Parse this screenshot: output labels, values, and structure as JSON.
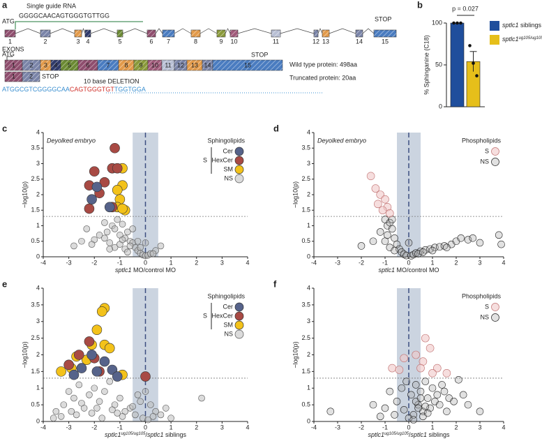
{
  "panel_a": {
    "panel": "a",
    "sgrna_label": "Single guide RNA",
    "sgrna_seq": "GGGGCAACAGTGGGTGTTGG",
    "start": "ATG",
    "stop": "STOP",
    "exons_label": "EXONS",
    "exons": [
      {
        "label": "1",
        "color": "#8f4e6e"
      },
      {
        "label": "2",
        "color": "#7a84a8"
      },
      {
        "label": "3",
        "color": "#e29a4a"
      },
      {
        "label": "4",
        "color": "#2f3a6b"
      },
      {
        "label": "5",
        "color": "#6b8a33"
      },
      {
        "label": "6",
        "color": "#8f4e6e"
      },
      {
        "label": "7",
        "color": "#4a7cc0"
      },
      {
        "label": "8",
        "color": "#e29a4a"
      },
      {
        "label": "9",
        "color": "#8a9a3a"
      },
      {
        "label": "10",
        "color": "#a05a7a"
      },
      {
        "label": "11",
        "color": "#b8bfd4"
      },
      {
        "label": "12",
        "color": "#7a84a8"
      },
      {
        "label": "13",
        "color": "#e29a4a"
      },
      {
        "label": "14",
        "color": "#7a84a8"
      },
      {
        "label": "15",
        "color": "#4a7cc0"
      }
    ],
    "truncated_blocks": [
      "1",
      "2"
    ],
    "wt_label": "Wild type protein: 498aa",
    "truncated_label": "Truncated protein: 20aa",
    "deletion_label": "10 base DELETION",
    "sequence": [
      {
        "text": "ATGGCGTCGGGGCAA",
        "color": "#3a8fd0"
      },
      {
        "text": "CAGTGGGTGT",
        "color": "#d0302a"
      },
      {
        "text": "TGGTGGA",
        "color": "#3a8fd0"
      }
    ]
  },
  "chart_data": [
    {
      "type": "bar",
      "panel": "b",
      "ylabel": "% Sphinganine (C18)",
      "ylim": [
        0,
        100
      ],
      "yticks": [
        0,
        50,
        100
      ],
      "annotation": "p = 0.027",
      "series": [
        {
          "label": [
            {
              "text": "sptlc1",
              "italic": true
            },
            {
              "text": " siblings"
            }
          ],
          "color": "#1f4e9c",
          "values": [
            100
          ],
          "error": [
            0
          ],
          "points": [
            100,
            100,
            100
          ]
        },
        {
          "label": [
            {
              "text": "sptlc1",
              "italic": true
            },
            {
              "text": "ug105/ug105",
              "sup": true,
              "italic": true
            }
          ],
          "color": "#e6bf1a",
          "values": [
            54
          ],
          "error": [
            12
          ],
          "points": [
            73,
            52,
            37
          ]
        }
      ]
    },
    {
      "type": "volcano",
      "panel": "c",
      "annotation": "Deyolked embryo",
      "ylabel": "−log10(p)",
      "xlabel": [
        {
          "text": "sptlc1",
          "italic": true
        },
        {
          "text": " MO/control MO"
        }
      ],
      "xlim": [
        -4,
        4
      ],
      "ylim": [
        0,
        4
      ],
      "xticks": [
        -4,
        -3,
        -2,
        -1,
        0,
        1,
        2,
        3,
        4
      ],
      "yticks": [
        0,
        0.5,
        1,
        1.5,
        2,
        2.5,
        3,
        3.5,
        4
      ],
      "threshold": 1.3,
      "band": [
        -0.5,
        0.5
      ],
      "legend_title": "Sphingolipids",
      "group_label": "S",
      "series": [
        {
          "name": "Cer",
          "color": "#56638a",
          "stroke": "#333",
          "size": 7,
          "x": [
            -2.1,
            -1.9,
            -1.4
          ],
          "values": [
            1.85,
            2.25,
            1.6
          ]
        },
        {
          "name": "HexCer",
          "color": "#a84a44",
          "stroke": "#333",
          "size": 7,
          "x": [
            -1.2,
            -1.3,
            -1.1,
            -2.0,
            -1.6,
            -2.2,
            -1.8,
            -1.3,
            -2.2
          ],
          "values": [
            3.5,
            2.85,
            2.85,
            2.75,
            2.4,
            2.3,
            2.05,
            1.6,
            1.55
          ]
        },
        {
          "name": "SM",
          "color": "#f3c21a",
          "stroke": "#333",
          "size": 7,
          "x": [
            -0.9,
            -0.9,
            -1.1,
            -1.0,
            -0.8,
            -1.1,
            -0.9
          ],
          "values": [
            2.85,
            2.3,
            2.15,
            1.85,
            1.5,
            1.6,
            1.55
          ]
        },
        {
          "name": "NS",
          "color": "rgba(190,190,190,0.55)",
          "stroke": "#555",
          "size": 4.5,
          "x": [
            -2.8,
            -2.5,
            -2.3,
            -2.0,
            -1.8,
            -1.6,
            -1.5,
            -1.4,
            -1.3,
            -1.2,
            -1.1,
            -1.0,
            -0.9,
            -0.8,
            -0.7,
            -0.6,
            -0.5,
            -0.4,
            -0.3,
            -0.2,
            -0.1,
            0.0,
            0.1,
            0.2,
            0.4,
            0.6,
            -1.2,
            -1.0,
            -0.8,
            -0.6,
            -0.9,
            -0.7,
            -1.6,
            -2.1,
            -0.5,
            -0.3,
            0.3,
            -1.4,
            -0.2,
            0.0
          ],
          "values": [
            0.35,
            0.5,
            0.9,
            0.55,
            0.7,
            1.1,
            0.8,
            0.45,
            1.0,
            0.9,
            1.2,
            0.7,
            1.05,
            0.6,
            0.8,
            0.5,
            0.45,
            0.3,
            0.2,
            0.12,
            0.06,
            0.03,
            0.05,
            0.1,
            0.2,
            0.35,
            0.3,
            0.4,
            0.25,
            0.35,
            0.55,
            0.15,
            0.6,
            0.4,
            0.9,
            0.5,
            0.1,
            0.25,
            0.3,
            0.45
          ]
        }
      ]
    },
    {
      "type": "volcano",
      "panel": "d",
      "annotation": "Deyolked embryo",
      "ylabel": "−log10(p)",
      "xlabel": [
        {
          "text": "sptlc1",
          "italic": true
        },
        {
          "text": " MO/control MO"
        }
      ],
      "xlim": [
        -4,
        4
      ],
      "ylim": [
        0,
        4
      ],
      "xticks": [
        -4,
        -3,
        -2,
        -1,
        0,
        1,
        2,
        3,
        4
      ],
      "yticks": [
        0,
        0.5,
        1,
        1.5,
        2,
        2.5,
        3,
        3.5,
        4
      ],
      "threshold": 1.3,
      "band": [
        -0.5,
        0.5
      ],
      "legend_title": "Phospholipids",
      "series": [
        {
          "name": "S",
          "color": "rgba(240,200,200,0.6)",
          "stroke": "#c07070",
          "size": 5.5,
          "x": [
            -1.6,
            -1.4,
            -1.2,
            -1.0,
            -1.3,
            -0.9,
            -1.1,
            -0.8
          ],
          "values": [
            2.6,
            2.2,
            2.0,
            1.85,
            1.7,
            1.6,
            1.5,
            1.4
          ]
        },
        {
          "name": "NS",
          "color": "rgba(170,170,170,0.35)",
          "stroke": "#222",
          "size": 5,
          "x": [
            -2.0,
            -1.5,
            -1.2,
            -1.0,
            -0.9,
            -0.8,
            -0.7,
            -0.6,
            -0.5,
            -0.4,
            -0.3,
            -0.2,
            -0.1,
            0.1,
            0.2,
            0.3,
            0.5,
            0.7,
            0.9,
            1.1,
            1.3,
            1.5,
            1.8,
            2.0,
            2.2,
            2.5,
            2.7,
            3.0,
            3.8,
            3.9,
            -1.0,
            -0.8,
            -0.6,
            -0.9,
            -0.7,
            0.0,
            0.4,
            0.6,
            1.0,
            1.6
          ],
          "values": [
            0.35,
            0.5,
            0.8,
            1.2,
            1.0,
            1.1,
            0.9,
            0.6,
            0.4,
            0.25,
            0.15,
            0.08,
            0.04,
            0.03,
            0.07,
            0.12,
            0.18,
            0.22,
            0.25,
            0.3,
            0.32,
            0.35,
            0.4,
            0.5,
            0.6,
            0.55,
            0.6,
            0.45,
            0.7,
            0.4,
            0.5,
            0.3,
            0.2,
            0.7,
            1.2,
            0.45,
            0.1,
            0.15,
            0.2,
            0.3
          ]
        }
      ]
    },
    {
      "type": "volcano",
      "panel": "e",
      "ylabel": "−log10(p)",
      "xlabel": [
        {
          "text": "sptlc1",
          "italic": true
        },
        {
          "text": "ug105/ug105",
          "sup": true,
          "italic": true
        },
        {
          "text": "/"
        },
        {
          "text": "sptlc1",
          "italic": true
        },
        {
          "text": " siblings"
        }
      ],
      "xlim": [
        -4,
        4
      ],
      "ylim": [
        0,
        4
      ],
      "xticks": [
        -4,
        -3,
        -2,
        -1,
        0,
        1,
        2,
        3,
        4
      ],
      "yticks": [
        0,
        0.5,
        1,
        1.5,
        2,
        2.5,
        3,
        3.5,
        4
      ],
      "threshold": 1.3,
      "band": [
        -0.5,
        0.5
      ],
      "legend_title": "Sphingolipids",
      "group_label": "S",
      "series": [
        {
          "name": "Cer",
          "color": "#56638a",
          "stroke": "#333",
          "size": 7,
          "x": [
            -2.1,
            -1.6,
            -2.5,
            -1.9,
            -1.3,
            -2.8,
            -1.1
          ],
          "values": [
            2.0,
            1.8,
            1.6,
            1.5,
            1.55,
            1.4,
            1.35
          ]
        },
        {
          "name": "HexCer",
          "color": "#a84a44",
          "stroke": "#333",
          "size": 7,
          "x": [
            -2.6,
            -2.2,
            -3.0,
            -2.0,
            -1.8,
            0.0
          ],
          "values": [
            2.0,
            2.4,
            1.7,
            1.9,
            1.5,
            1.35
          ]
        },
        {
          "name": "SM",
          "color": "#f3c21a",
          "stroke": "#333",
          "size": 7,
          "x": [
            -1.6,
            -1.7,
            -1.9,
            -2.1,
            -1.6,
            -2.7,
            -2.3,
            -3.3,
            -2.9,
            -1.4,
            -0.9
          ],
          "values": [
            3.4,
            3.3,
            2.75,
            2.3,
            2.3,
            1.95,
            1.85,
            1.5,
            1.6,
            2.2,
            1.4
          ]
        },
        {
          "name": "NS",
          "color": "rgba(190,190,190,0.55)",
          "stroke": "#555",
          "size": 4.5,
          "x": [
            -3.5,
            -3.2,
            -3.0,
            -2.8,
            -2.6,
            -2.4,
            -2.2,
            -2.0,
            -1.8,
            -1.6,
            -1.4,
            -1.2,
            -1.0,
            -0.8,
            -0.6,
            -0.4,
            -0.2,
            0.0,
            0.2,
            0.4,
            0.6,
            0.8,
            1.0,
            2.2,
            -3.3,
            -2.9,
            -2.5,
            -2.1,
            -1.7,
            -1.3,
            -0.9,
            -0.5,
            -0.1,
            0.1,
            -2.7,
            -1.9,
            -1.1,
            -0.3,
            0.3,
            -3.6
          ],
          "values": [
            0.3,
            0.5,
            0.9,
            0.7,
            1.1,
            0.4,
            0.8,
            1.0,
            0.6,
            0.9,
            1.2,
            0.5,
            0.7,
            0.3,
            0.4,
            0.2,
            0.6,
            0.9,
            0.5,
            0.3,
            0.2,
            0.4,
            0.1,
            0.7,
            0.15,
            0.3,
            0.55,
            0.25,
            0.1,
            0.35,
            0.15,
            0.45,
            0.1,
            0.05,
            0.2,
            0.4,
            0.25,
            0.8,
            0.15,
            0.1
          ]
        }
      ]
    },
    {
      "type": "volcano",
      "panel": "f",
      "ylabel": "−log10(p)",
      "xlabel": [
        {
          "text": "sptlc1",
          "italic": true
        },
        {
          "text": "ug105/ug105",
          "sup": true,
          "italic": true
        },
        {
          "text": "/"
        },
        {
          "text": "sptlc1",
          "italic": true
        },
        {
          "text": " siblings"
        }
      ],
      "xlim": [
        -4,
        4
      ],
      "ylim": [
        0,
        4
      ],
      "xticks": [
        -4,
        -3,
        -2,
        -1,
        0,
        1,
        2,
        3,
        4
      ],
      "yticks": [
        0,
        0.5,
        1,
        1.5,
        2,
        2.5,
        3,
        3.5,
        4
      ],
      "threshold": 1.3,
      "band": [
        -0.5,
        0.5
      ],
      "legend_title": "Phospholipids",
      "series": [
        {
          "name": "S",
          "color": "rgba(240,200,200,0.6)",
          "stroke": "#c07070",
          "size": 5.5,
          "x": [
            0.7,
            0.9,
            0.3,
            0.6,
            -0.7,
            -0.4,
            1.2,
            0.5,
            -0.2,
            1.0,
            1.6
          ],
          "values": [
            2.5,
            2.2,
            2.0,
            1.8,
            1.6,
            1.55,
            1.6,
            1.6,
            1.9,
            1.45,
            1.45
          ]
        },
        {
          "name": "NS",
          "color": "rgba(170,170,170,0.35)",
          "stroke": "#222",
          "size": 5,
          "x": [
            -3.3,
            -1.5,
            -1.0,
            -0.8,
            -0.5,
            -0.3,
            -0.1,
            0.1,
            0.2,
            0.3,
            0.4,
            0.5,
            0.6,
            0.7,
            0.8,
            0.9,
            1.0,
            1.1,
            1.2,
            1.3,
            1.5,
            1.7,
            1.9,
            2.1,
            2.3,
            2.5,
            3.0,
            0.0,
            0.2,
            0.4,
            -0.2,
            0.6,
            0.8,
            1.4,
            -0.6,
            -1.2,
            0.3,
            0.5,
            0.7,
            1.6
          ],
          "values": [
            0.3,
            0.5,
            0.4,
            0.9,
            0.6,
            1.0,
            1.2,
            0.8,
            0.2,
            1.1,
            0.5,
            0.9,
            0.3,
            1.2,
            0.7,
            0.4,
            1.0,
            0.6,
            0.8,
            0.5,
            0.9,
            0.7,
            0.6,
            1.25,
            0.8,
            0.5,
            0.3,
            0.1,
            0.05,
            0.4,
            0.35,
            0.15,
            0.25,
            1.1,
            0.2,
            0.15,
            0.6,
            0.7,
            0.45,
            0.3
          ]
        }
      ]
    }
  ]
}
